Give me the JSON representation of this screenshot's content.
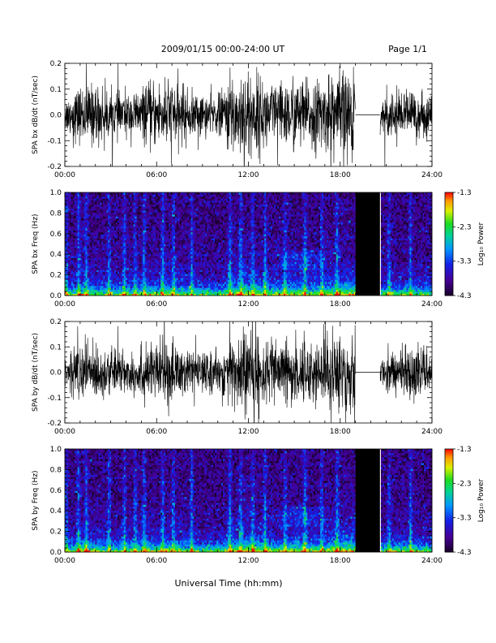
{
  "header": {
    "title": "2009/01/15  00:00-24:00 UT",
    "page": "Page 1/1"
  },
  "xlabel": "Universal Time (hh:mm)",
  "x_ticks": [
    "00:00",
    "06:00",
    "12:00",
    "18:00",
    "24:00"
  ],
  "chart_data": [
    {
      "type": "line",
      "ylabel": "SPA bx dB/dt (nT/sec)",
      "y_ticks": [
        "-0.2",
        "-0.1",
        "0.0",
        "0.1",
        "0.2"
      ],
      "ylim": [
        -0.2,
        0.2
      ],
      "xlim_hours": [
        0,
        24
      ],
      "data_gap_hours": [
        19.0,
        20.6
      ],
      "amplitude_envelope": {
        "hours": [
          0,
          1,
          2,
          3,
          4,
          5,
          6,
          7,
          8,
          9,
          10,
          11,
          12,
          13,
          14,
          15,
          16,
          17,
          18,
          19,
          20.6,
          21,
          22,
          23,
          24
        ],
        "values": [
          0.07,
          0.12,
          0.13,
          0.1,
          0.09,
          0.11,
          0.14,
          0.15,
          0.1,
          0.09,
          0.08,
          0.18,
          0.2,
          0.15,
          0.13,
          0.16,
          0.14,
          0.15,
          0.19,
          0.2,
          0.06,
          0.08,
          0.1,
          0.09,
          0.08
        ]
      }
    },
    {
      "type": "heatmap",
      "ylabel": "SPA bx Freq (Hz)",
      "y_ticks": [
        "0.0",
        "0.2",
        "0.4",
        "0.6",
        "0.8",
        "1.0"
      ],
      "ylim": [
        0.0,
        1.0
      ],
      "xlim_hours": [
        0,
        24
      ],
      "data_gap_hours": [
        19.0,
        20.6
      ],
      "colorbar": {
        "label": "Log₁₀ Power",
        "ticks": [
          "-1.3",
          "-2.3",
          "-3.3",
          "-4.3"
        ],
        "range": [
          -4.3,
          -1.3
        ]
      }
    },
    {
      "type": "line",
      "ylabel": "SPA by dB/dt (nT/sec)",
      "y_ticks": [
        "-0.2",
        "-0.1",
        "0.0",
        "0.1",
        "0.2"
      ],
      "ylim": [
        -0.2,
        0.2
      ],
      "xlim_hours": [
        0,
        24
      ],
      "data_gap_hours": [
        19.0,
        20.6
      ],
      "amplitude_envelope": {
        "hours": [
          0,
          1,
          2,
          3,
          4,
          5,
          6,
          7,
          8,
          9,
          10,
          11,
          12,
          13,
          14,
          15,
          16,
          17,
          18,
          19,
          20.6,
          21,
          22,
          23,
          24
        ],
        "values": [
          0.06,
          0.13,
          0.12,
          0.09,
          0.1,
          0.11,
          0.13,
          0.14,
          0.1,
          0.08,
          0.08,
          0.17,
          0.2,
          0.14,
          0.12,
          0.16,
          0.13,
          0.14,
          0.19,
          0.2,
          0.05,
          0.08,
          0.11,
          0.1,
          0.08
        ]
      }
    },
    {
      "type": "heatmap",
      "ylabel": "SPA by Freq (Hz)",
      "y_ticks": [
        "0.0",
        "0.2",
        "0.4",
        "0.6",
        "0.8",
        "1.0"
      ],
      "ylim": [
        0.0,
        1.0
      ],
      "xlim_hours": [
        0,
        24
      ],
      "data_gap_hours": [
        19.0,
        20.6
      ],
      "colorbar": {
        "label": "Log₁₀ Power",
        "ticks": [
          "-1.3",
          "-2.3",
          "-3.3",
          "-4.3"
        ],
        "range": [
          -4.3,
          -1.3
        ]
      }
    }
  ]
}
